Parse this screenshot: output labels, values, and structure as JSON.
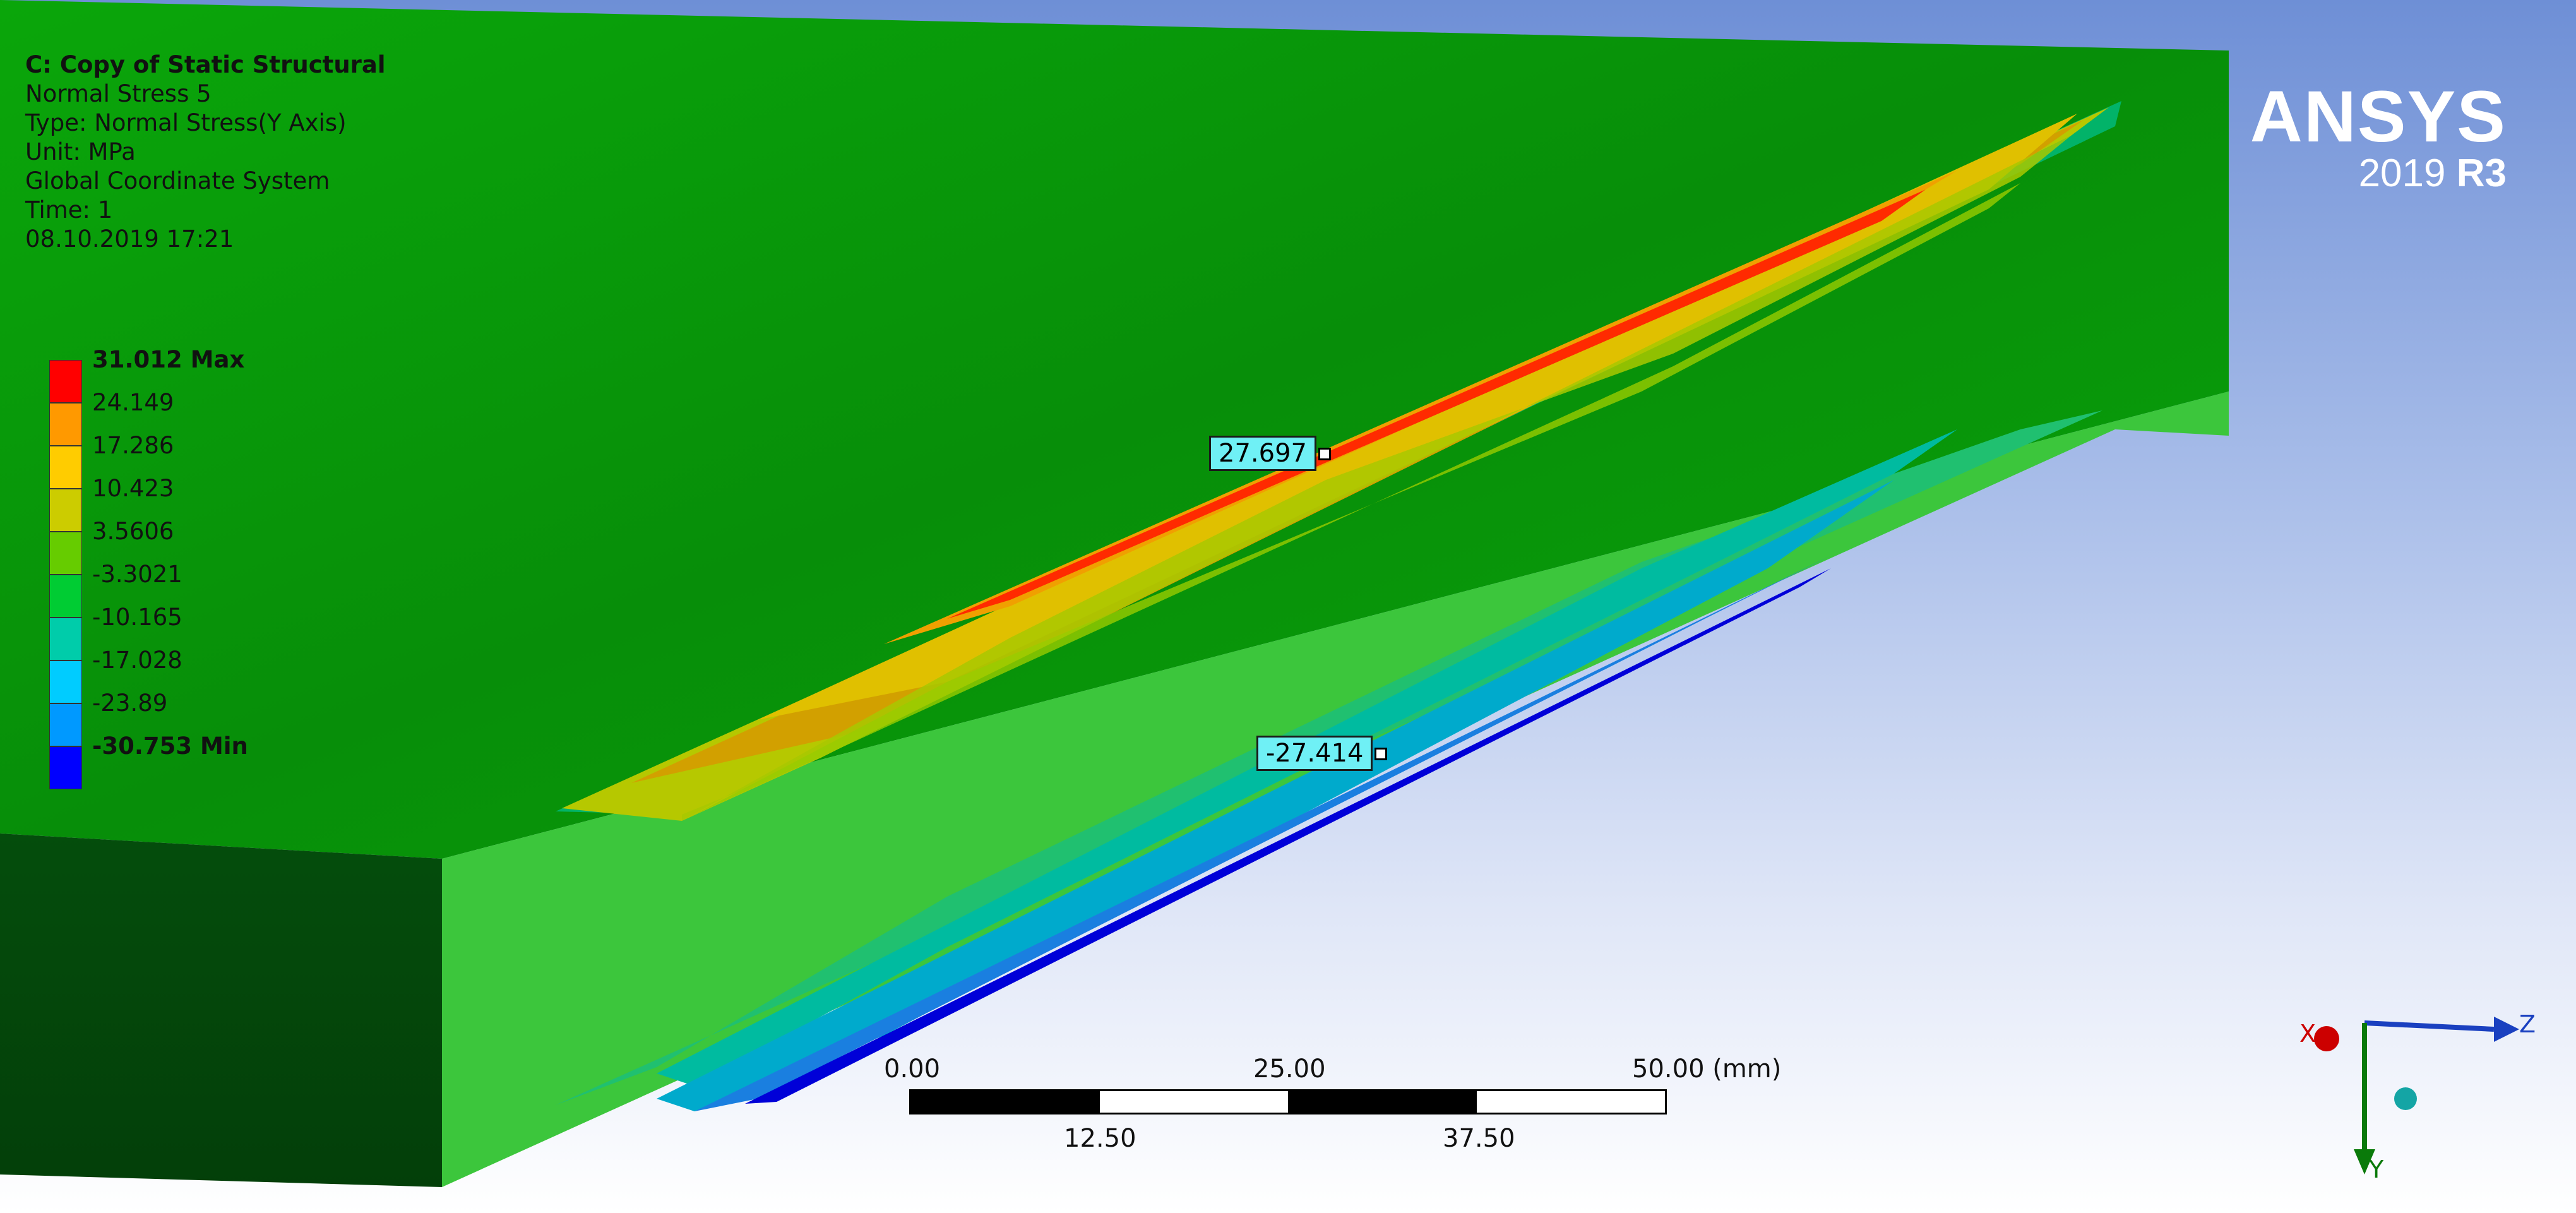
{
  "info": {
    "title": "C: Copy of Static Structural",
    "result_name": "Normal Stress 5",
    "type": "Type: Normal Stress(Y Axis)",
    "unit": "Unit: MPa",
    "coord": "Global Coordinate System",
    "time": "Time: 1",
    "timestamp": "08.10.2019 17:21"
  },
  "legend": {
    "labels": [
      "31.012 Max",
      "24.149",
      "17.286",
      "10.423",
      "3.5606",
      "-3.3021",
      "-10.165",
      "-17.028",
      "-23.89",
      "-30.753 Min"
    ],
    "colors": [
      "#ff0000",
      "#ff9900",
      "#ffcc00",
      "#cccc00",
      "#66cc00",
      "#00cc33",
      "#00ccaa",
      "#00ccff",
      "#0099ff",
      "#0000ff"
    ]
  },
  "logo": {
    "name": "ANSYS",
    "version": "2019",
    "release": "R3"
  },
  "probes": {
    "max_probe": "27.697",
    "min_probe": "-27.414"
  },
  "scale": {
    "l0": "0.00",
    "l1": "25.00",
    "l2": "50.00 (mm)",
    "l3": "12.50",
    "l4": "37.50"
  },
  "triad": {
    "x": "X",
    "y": "Y",
    "z": "Z"
  },
  "colors": {
    "block_top": "#07ad07",
    "block_front": "#3cc63c",
    "block_side": "#04470a",
    "background_top": "#6e8fd6"
  }
}
